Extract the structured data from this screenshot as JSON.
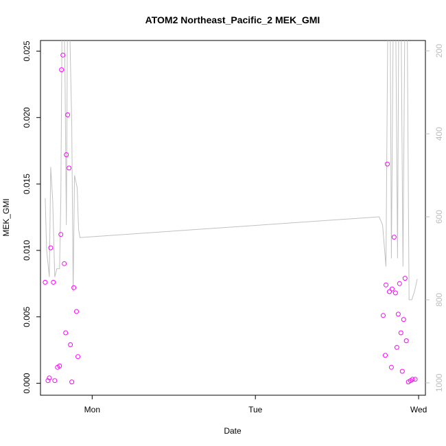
{
  "chart_data": {
    "type": "scatter",
    "title": "ATOM2 Northeast_Pacific_2 MEK_GMI",
    "xlabel": "Date",
    "ylabel": "MEK_GMI",
    "x_ticks": [
      {
        "label": "Mon",
        "t": 24
      },
      {
        "label": "Tue",
        "t": 48
      },
      {
        "label": "Wed",
        "t": 72
      }
    ],
    "xlim": [
      16.4,
      73.0
    ],
    "ylim": [
      -0.0009,
      0.0258
    ],
    "y_ticks": [
      "0.000",
      "0.005",
      "0.010",
      "0.015",
      "0.020",
      "0.025"
    ],
    "y_tick_values": [
      0,
      0.005,
      0.01,
      0.015,
      0.02,
      0.025
    ],
    "right_axis": {
      "ylim": [
        1030,
        175
      ],
      "reversed": true,
      "ticks": [
        "200",
        "400",
        "600",
        "800",
        "1000"
      ],
      "tick_values": [
        200,
        400,
        600,
        800,
        1000
      ],
      "color": "#bdbdbd"
    },
    "point_color": "#ff00ff",
    "line_color": "#c0c0c0",
    "series": [
      {
        "type": "scatter",
        "points": [
          [
            17.1,
            0.0076
          ],
          [
            17.5,
            0.0002
          ],
          [
            17.7,
            0.0004
          ],
          [
            17.9,
            0.0102
          ],
          [
            18.3,
            0.0076
          ],
          [
            18.5,
            0.0002
          ],
          [
            18.9,
            0.0012
          ],
          [
            19.2,
            0.0013
          ],
          [
            19.4,
            0.0112
          ],
          [
            19.5,
            0.0236
          ],
          [
            19.7,
            0.0247
          ],
          [
            19.9,
            0.009
          ],
          [
            20.1,
            0.0038
          ],
          [
            20.2,
            0.0172
          ],
          [
            20.4,
            0.0202
          ],
          [
            20.6,
            0.0162
          ],
          [
            20.8,
            0.0029
          ],
          [
            21.0,
            0.0001
          ],
          [
            21.3,
            0.0072
          ],
          [
            21.7,
            0.0054
          ],
          [
            21.9,
            0.002
          ],
          [
            66.8,
            0.0051
          ],
          [
            67.1,
            0.0021
          ],
          [
            67.2,
            0.0074
          ],
          [
            67.4,
            0.0165
          ],
          [
            67.7,
            0.0069
          ],
          [
            68.0,
            0.0012
          ],
          [
            68.1,
            0.0071
          ],
          [
            68.4,
            0.011
          ],
          [
            68.6,
            0.0068
          ],
          [
            68.8,
            0.0027
          ],
          [
            69.0,
            0.0052
          ],
          [
            69.2,
            0.0075
          ],
          [
            69.4,
            0.0038
          ],
          [
            69.6,
            0.0009
          ],
          [
            69.8,
            0.0048
          ],
          [
            70.0,
            0.0079
          ],
          [
            70.2,
            0.0032
          ],
          [
            70.5,
            0.0001
          ],
          [
            70.8,
            0.0002
          ],
          [
            71.1,
            0.0003
          ],
          [
            71.5,
            0.0003
          ]
        ]
      },
      {
        "type": "line",
        "axis": "right",
        "points": [
          [
            17.1,
            555
          ],
          [
            17.3,
            680
          ],
          [
            17.7,
            745
          ],
          [
            17.9,
            480
          ],
          [
            18.2,
            560
          ],
          [
            18.5,
            745
          ],
          [
            18.8,
            725
          ],
          [
            19.0,
            725
          ],
          [
            19.2,
            725
          ],
          [
            19.4,
            550
          ],
          [
            19.6,
            60
          ],
          [
            19.8,
            60
          ],
          [
            20.0,
            250
          ],
          [
            20.2,
            620
          ],
          [
            20.4,
            60
          ],
          [
            20.6,
            60
          ],
          [
            21.0,
            380
          ],
          [
            21.2,
            780
          ],
          [
            21.4,
            500
          ],
          [
            21.8,
            530
          ],
          [
            22.0,
            630
          ],
          [
            22.2,
            650
          ],
          [
            66.2,
            600
          ],
          [
            66.7,
            620
          ],
          [
            67.2,
            720
          ],
          [
            67.5,
            60
          ],
          [
            67.8,
            60
          ],
          [
            68.0,
            700
          ],
          [
            68.3,
            60
          ],
          [
            68.6,
            60
          ],
          [
            68.9,
            700
          ],
          [
            69.1,
            60
          ],
          [
            69.4,
            60
          ],
          [
            69.7,
            720
          ],
          [
            70.0,
            60
          ],
          [
            70.3,
            60
          ],
          [
            70.6,
            800
          ],
          [
            71.0,
            800
          ],
          [
            71.4,
            780
          ],
          [
            71.8,
            750
          ]
        ]
      }
    ]
  }
}
